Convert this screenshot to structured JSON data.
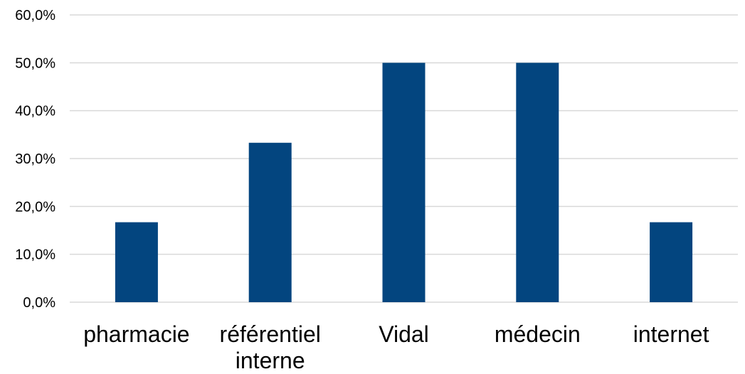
{
  "chart_data": {
    "type": "bar",
    "title": "",
    "xlabel": "",
    "ylabel": "",
    "categories": [
      [
        "pharmacie"
      ],
      [
        "référentiel",
        "interne"
      ],
      [
        "Vidal"
      ],
      [
        "médecin"
      ],
      [
        "internet"
      ]
    ],
    "values": [
      16.7,
      33.3,
      50.0,
      50.0,
      16.7
    ],
    "value_unit": "percent",
    "ylim": [
      0,
      60
    ],
    "y_ticks": [
      0,
      10,
      20,
      30,
      40,
      50,
      60
    ],
    "y_tick_labels": [
      "0,0%",
      "10,0%",
      "20,0%",
      "30,0%",
      "40,0%",
      "50,0%",
      "60,0%"
    ],
    "grid": true,
    "legend": "none",
    "bar_color": "#03457f",
    "grid_color": "#d9d9d9"
  }
}
